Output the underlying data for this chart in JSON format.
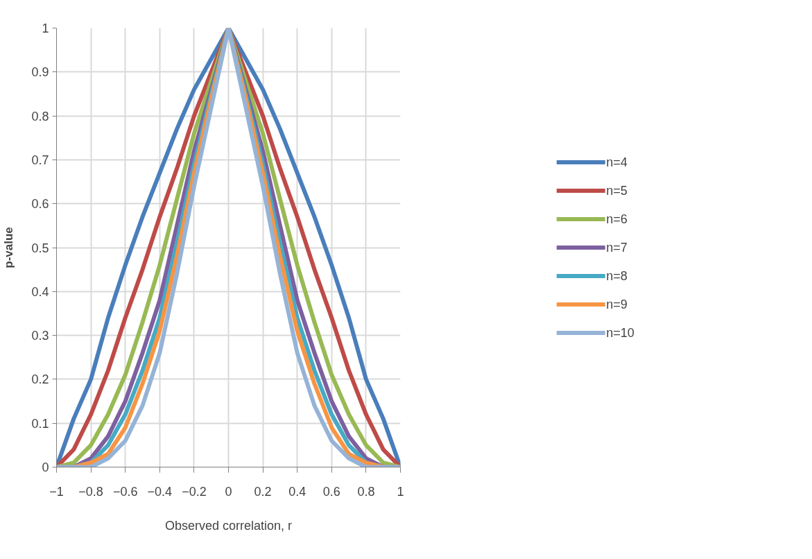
{
  "chart_data": {
    "type": "line",
    "xlabel": "Observed correlation, r",
    "ylabel": "p-value",
    "x": [
      -1,
      -0.9,
      -0.8,
      -0.7,
      -0.6,
      -0.5,
      -0.4,
      -0.3,
      -0.2,
      -0.1,
      0,
      0.1,
      0.2,
      0.3,
      0.4,
      0.5,
      0.6,
      0.7,
      0.8,
      0.9,
      1
    ],
    "xlim": [
      -1,
      1
    ],
    "ylim": [
      0,
      1
    ],
    "xticks": [
      -1,
      -0.8,
      -0.6,
      -0.4,
      -0.2,
      0,
      0.2,
      0.4,
      0.6,
      0.8,
      1
    ],
    "yticks": [
      0,
      0.1,
      0.2,
      0.3,
      0.4,
      0.5,
      0.6,
      0.7,
      0.8,
      0.9,
      1
    ],
    "grid": true,
    "legend": "right",
    "marker": "none",
    "line_style": "solid",
    "series": [
      {
        "name": "n=4",
        "color": "#4a7ebb",
        "values": [
          0,
          0.11,
          0.2,
          0.34,
          0.46,
          0.57,
          0.67,
          0.77,
          0.86,
          0.93,
          1,
          0.93,
          0.86,
          0.77,
          0.67,
          0.57,
          0.46,
          0.34,
          0.2,
          0.11,
          0
        ]
      },
      {
        "name": "n=5",
        "color": "#be4b48",
        "values": [
          0,
          0.04,
          0.12,
          0.22,
          0.34,
          0.45,
          0.57,
          0.68,
          0.8,
          0.9,
          1,
          0.9,
          0.8,
          0.68,
          0.57,
          0.45,
          0.34,
          0.22,
          0.12,
          0.04,
          0
        ]
      },
      {
        "name": "n=6",
        "color": "#98b954",
        "values": [
          0,
          0.01,
          0.05,
          0.12,
          0.21,
          0.33,
          0.46,
          0.61,
          0.76,
          0.88,
          1,
          0.88,
          0.76,
          0.61,
          0.46,
          0.33,
          0.21,
          0.12,
          0.05,
          0.01,
          0
        ]
      },
      {
        "name": "n=7",
        "color": "#7d60a0",
        "values": [
          0,
          0,
          0.02,
          0.07,
          0.15,
          0.26,
          0.38,
          0.55,
          0.72,
          0.86,
          1,
          0.86,
          0.72,
          0.55,
          0.38,
          0.26,
          0.15,
          0.07,
          0.02,
          0,
          0
        ]
      },
      {
        "name": "n=8",
        "color": "#46aac5",
        "values": [
          0,
          0,
          0.01,
          0.05,
          0.12,
          0.22,
          0.34,
          0.51,
          0.69,
          0.85,
          1,
          0.85,
          0.69,
          0.51,
          0.34,
          0.22,
          0.12,
          0.05,
          0.01,
          0,
          0
        ]
      },
      {
        "name": "n=9",
        "color": "#f69545",
        "values": [
          0,
          0,
          0.01,
          0.03,
          0.09,
          0.19,
          0.31,
          0.48,
          0.67,
          0.84,
          1,
          0.84,
          0.67,
          0.48,
          0.31,
          0.19,
          0.09,
          0.03,
          0.01,
          0,
          0
        ]
      },
      {
        "name": "n=10",
        "color": "#95b3d7",
        "values": [
          0,
          0,
          0,
          0.02,
          0.06,
          0.14,
          0.26,
          0.44,
          0.64,
          0.82,
          1,
          0.82,
          0.64,
          0.44,
          0.26,
          0.14,
          0.06,
          0.02,
          0,
          0,
          0
        ]
      }
    ]
  }
}
